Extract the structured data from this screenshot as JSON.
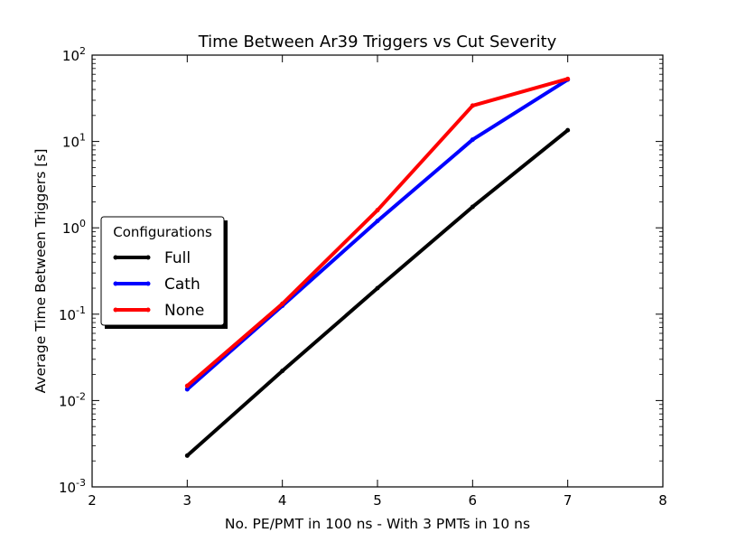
{
  "chart_data": {
    "type": "line",
    "title": "Time Between Ar39 Triggers vs Cut Severity",
    "xlabel": "No. PE/PMT in 100 ns - With 3 PMTs in 10 ns",
    "ylabel": "Average Time Between Triggers [s]",
    "x_scale": "linear",
    "y_scale": "log",
    "xlim": [
      2,
      8
    ],
    "ylim": [
      0.001,
      100
    ],
    "x_ticks": [
      2,
      3,
      4,
      5,
      6,
      7,
      8
    ],
    "y_ticks": [
      {
        "base": "10",
        "exp": "-3",
        "value": 0.001
      },
      {
        "base": "10",
        "exp": "-2",
        "value": 0.01
      },
      {
        "base": "10",
        "exp": "-1",
        "value": 0.1
      },
      {
        "base": "10",
        "exp": "0",
        "value": 1
      },
      {
        "base": "10",
        "exp": "1",
        "value": 10
      },
      {
        "base": "10",
        "exp": "2",
        "value": 100
      }
    ],
    "grid": false,
    "legend": {
      "title": "Configurations",
      "placement": "center-left"
    },
    "x": [
      3,
      4,
      5,
      6,
      7
    ],
    "series": [
      {
        "name": "Full",
        "color": "#000000",
        "values": [
          0.0023,
          0.022,
          0.2,
          1.75,
          13.5
        ]
      },
      {
        "name": "Cath",
        "color": "#0000ff",
        "values": [
          0.0135,
          0.125,
          1.2,
          10.5,
          52
        ]
      },
      {
        "name": "None",
        "color": "#ff0000",
        "values": [
          0.0148,
          0.132,
          1.6,
          26,
          53
        ]
      }
    ]
  }
}
